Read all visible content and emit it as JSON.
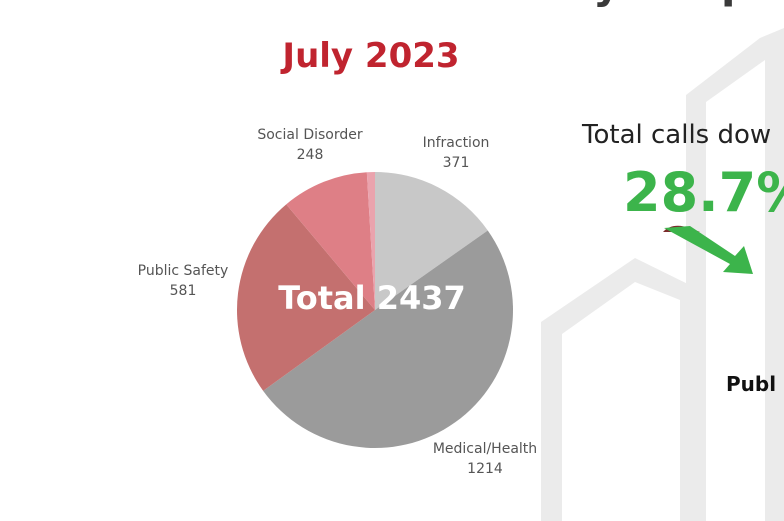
{
  "chart_data": {
    "type": "pie",
    "title": "Calls for Downtown Safety Resp",
    "subtitle": "July 2023",
    "center_label": "Total 2437",
    "categories": [
      "Infraction",
      "Medical/Health",
      "Public Safety",
      "Social Disorder",
      null
    ],
    "values": [
      371,
      1214,
      581,
      248,
      23
    ],
    "colors": [
      "#c8c8c8",
      "#9b9b9b",
      "#c4706f",
      "#de7f86",
      "#eaa3ad"
    ]
  },
  "callout": {
    "text": "Total calls dow",
    "change": "28.7%",
    "footer": "Publ"
  }
}
